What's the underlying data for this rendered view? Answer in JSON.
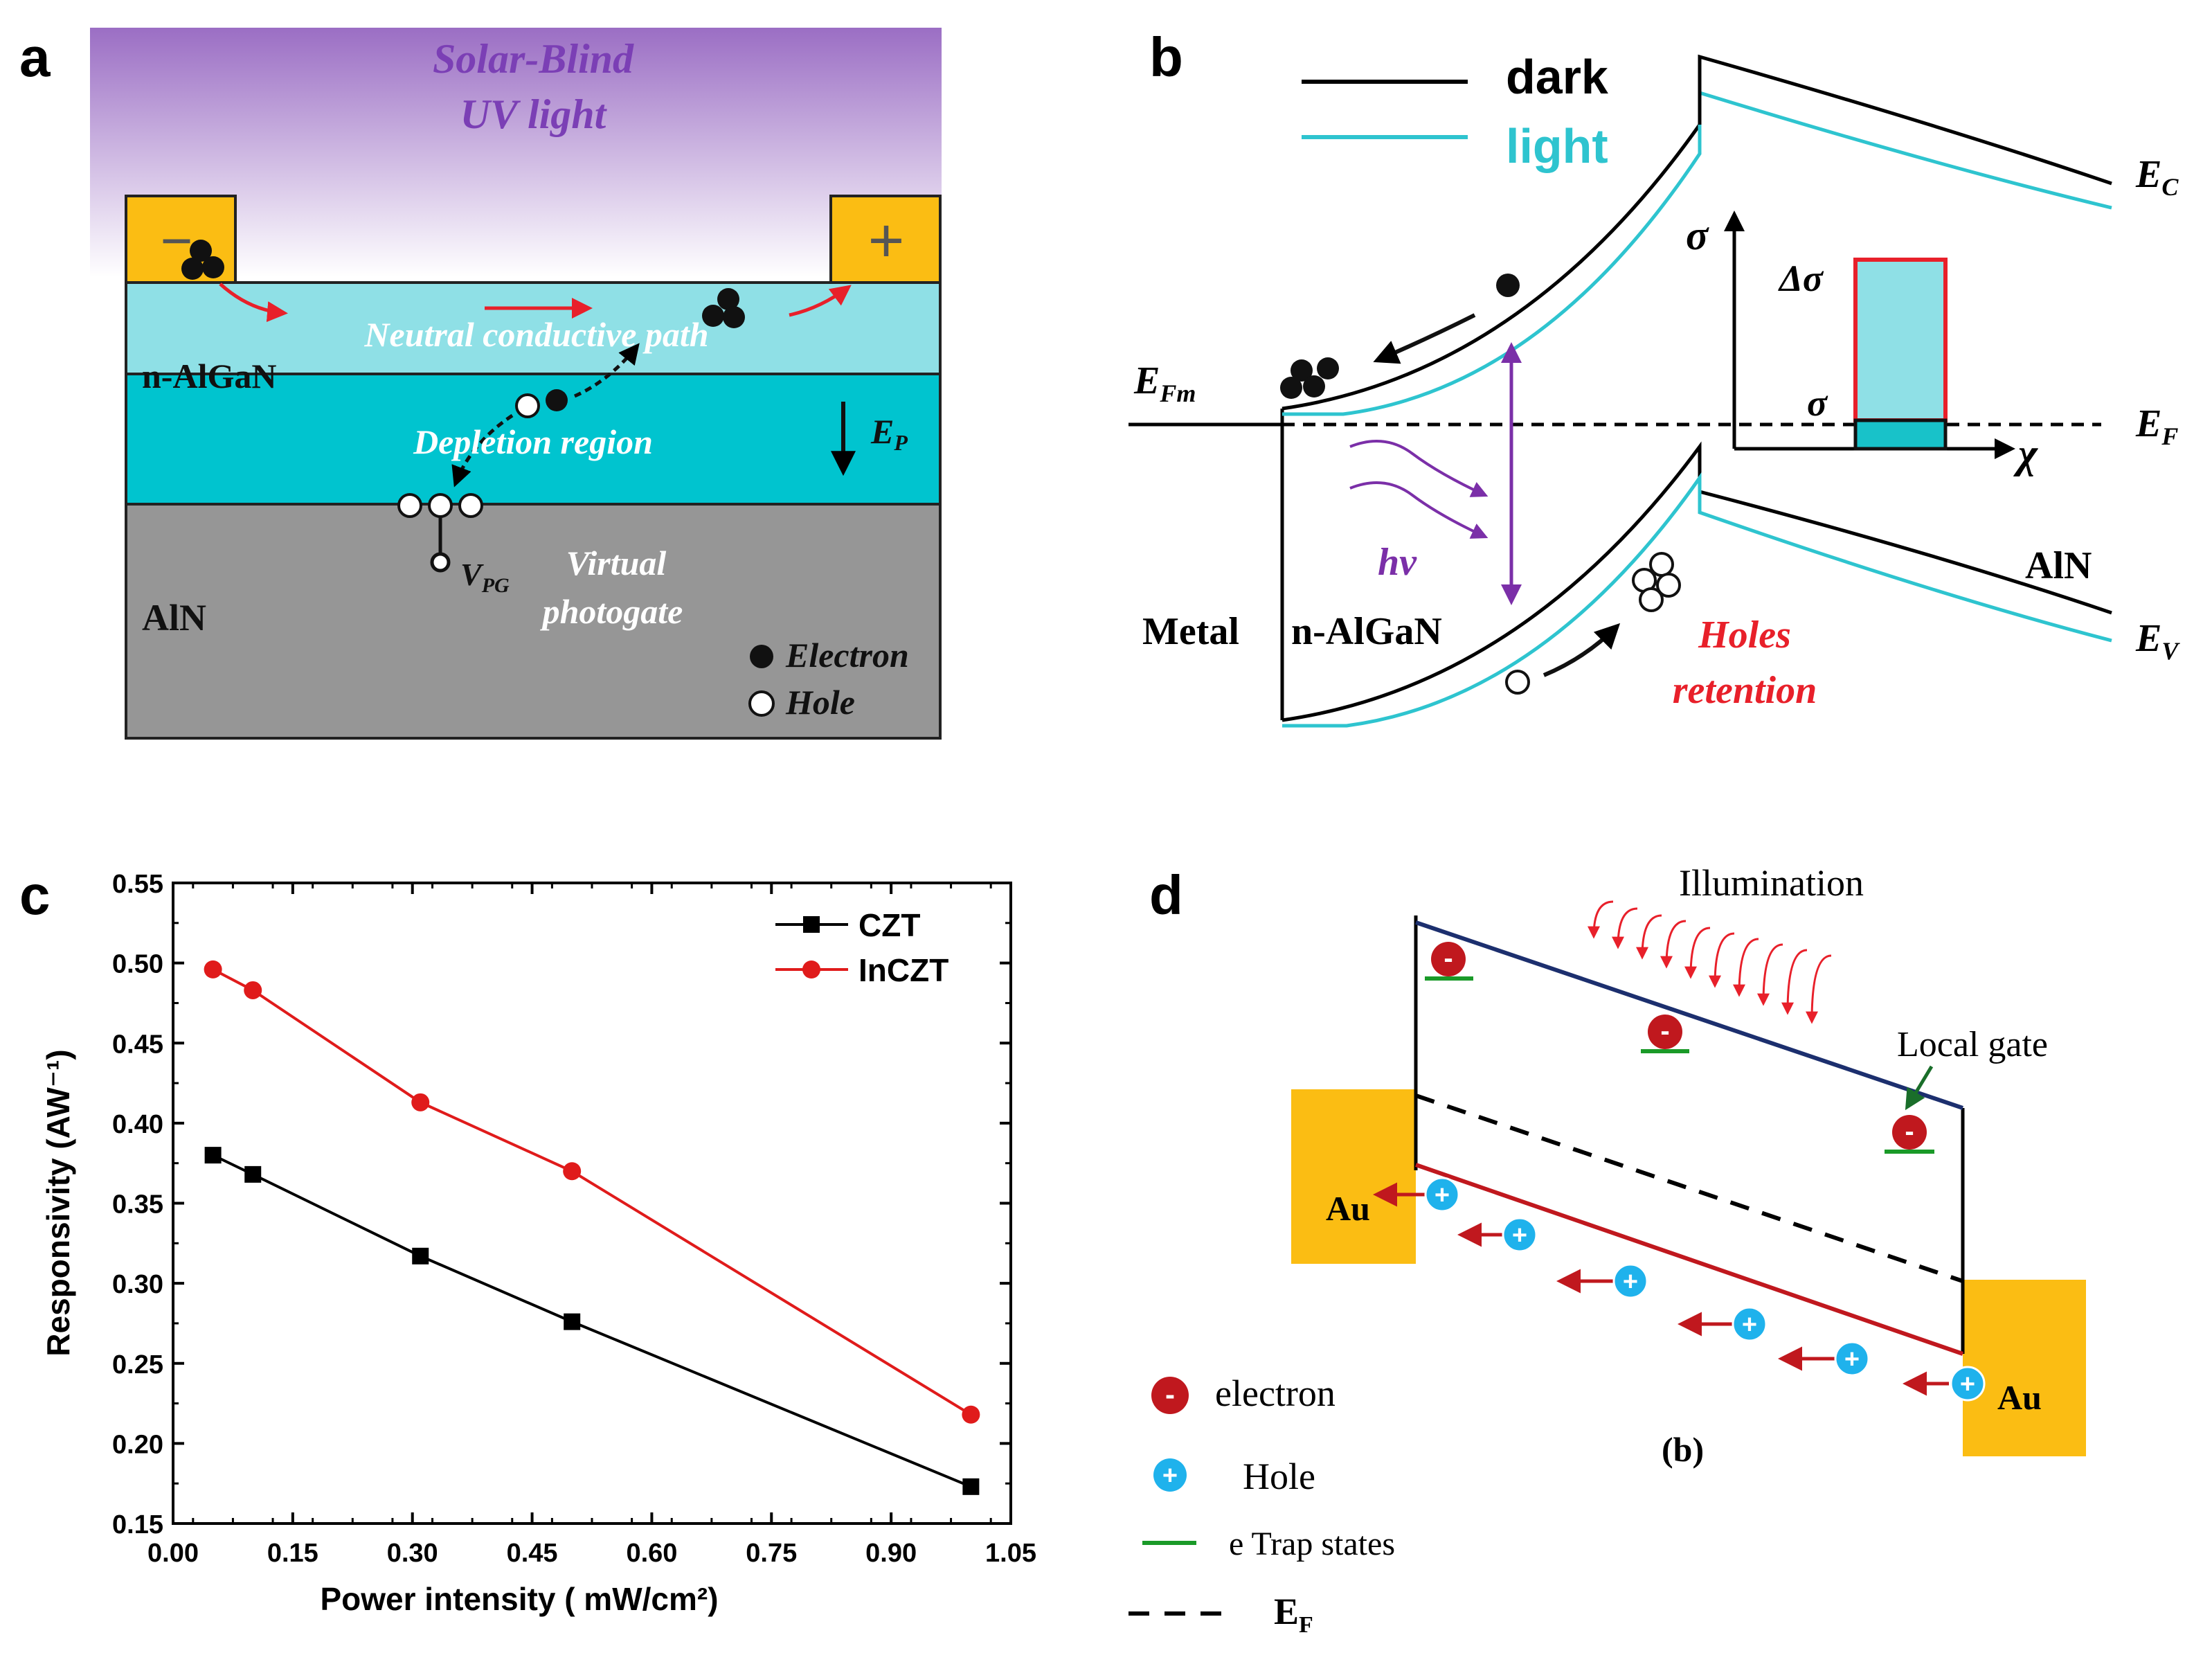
{
  "panel_labels": {
    "a": "a",
    "b": "b",
    "c": "c",
    "d": "d"
  },
  "panel_a": {
    "light_title_line1": "Solar-Blind",
    "light_title_line2": "UV light",
    "minus_sign": "−",
    "plus_sign": "+",
    "neutral_path": "Neutral conductive path",
    "layer_algan": "n-AlGaN",
    "depletion": "Depletion region",
    "field_label": "E",
    "field_sub": "P",
    "vpg_label": "V",
    "vpg_sub": "PG",
    "virtual_line1": "Virtual",
    "virtual_line2": "photogate",
    "layer_aln": "AlN",
    "legend_electron": "Electron",
    "legend_hole": "Hole"
  },
  "panel_b": {
    "legend_dark": "dark",
    "legend_light": "light",
    "efm": "E",
    "efm_sub": "Fm",
    "ef": "E",
    "ef_sub": "F",
    "ec": "E",
    "ec_sub": "C",
    "ev": "E",
    "ev_sub": "V",
    "metal": "Metal",
    "algan": "n-AlGaN",
    "aln": "AlN",
    "hv": "hv",
    "holes_line1": "Holes",
    "holes_line2": "retention",
    "inset_sigma_axis": "σ",
    "inset_delta_sigma": "Δσ",
    "inset_sigma": "σ",
    "inset_x_axis": "χ",
    "colors": {
      "dark": "#000000",
      "light": "#2ec4cf",
      "holes": "#e8202a",
      "photon": "#7b2fa8"
    }
  },
  "panel_d": {
    "illumination": "Illumination",
    "local_gate": "Local gate",
    "au_left": "Au",
    "au_right": "Au",
    "sub_label": "(b)",
    "legend_electron": "electron",
    "legend_hole": "Hole",
    "legend_trap": "e Trap states",
    "legend_ef": "E",
    "legend_ef_sub": "F",
    "electron_symbol": "-",
    "hole_symbol": "+",
    "colors": {
      "conduction": "#1c2f6e",
      "valence": "#c0181e",
      "gold": "#fbbd13",
      "hole": "#1fb2ec",
      "trap": "#1a9a28"
    }
  },
  "chart_data": {
    "type": "line",
    "title": "",
    "xlabel": "Power intensity ( mW/cm²)",
    "ylabel": "Responsivity (AW⁻¹)",
    "xlim": [
      0.0,
      1.05
    ],
    "ylim": [
      0.15,
      0.55
    ],
    "xticks": [
      "0.00",
      "0.15",
      "0.30",
      "0.45",
      "0.60",
      "0.75",
      "0.90",
      "1.05"
    ],
    "yticks": [
      "0.15",
      "0.20",
      "0.25",
      "0.30",
      "0.35",
      "0.40",
      "0.45",
      "0.50",
      "0.55"
    ],
    "x": [
      0.05,
      0.1,
      0.31,
      0.5,
      1.0
    ],
    "series": [
      {
        "name": "CZT",
        "color": "#000000",
        "marker": "square",
        "values": [
          0.38,
          0.368,
          0.317,
          0.276,
          0.173
        ]
      },
      {
        "name": "InCZT",
        "color": "#e01b1b",
        "marker": "circle",
        "values": [
          0.496,
          0.483,
          0.413,
          0.37,
          0.218
        ]
      }
    ],
    "legend": "top-right"
  }
}
